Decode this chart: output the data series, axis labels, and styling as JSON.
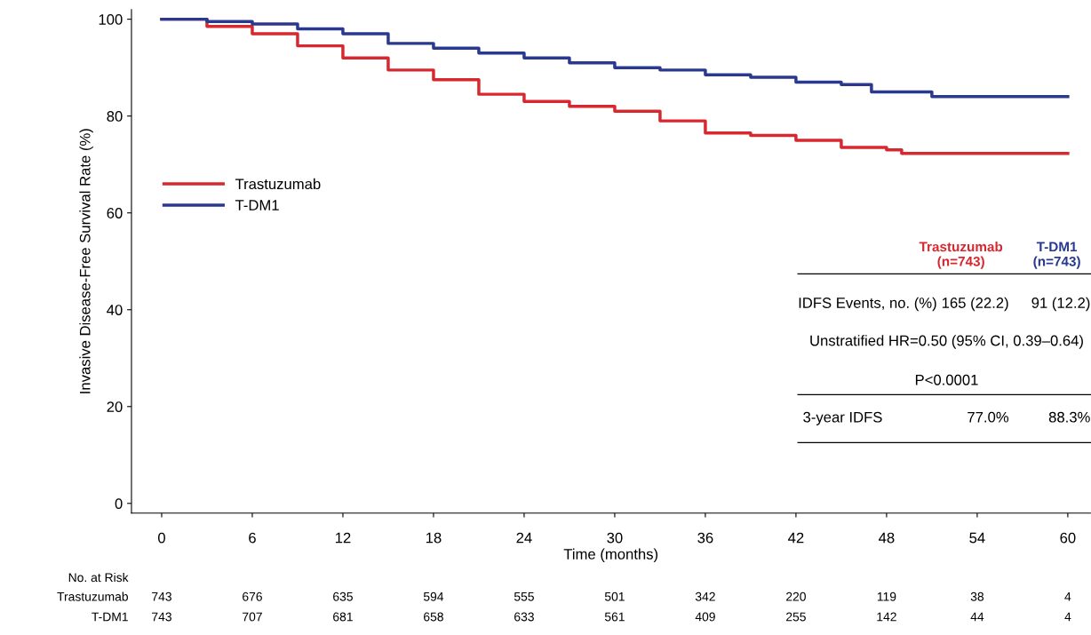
{
  "chart_data": {
    "type": "step",
    "xlabel": "Time (months)",
    "ylabel": "Invasive Disease-Free Survival Rate (%)",
    "xlim": [
      -2,
      61.5
    ],
    "ylim": [
      -2,
      102
    ],
    "xticks": [
      0,
      6,
      12,
      18,
      24,
      30,
      36,
      42,
      48,
      54,
      60
    ],
    "yticks": [
      0,
      20,
      40,
      60,
      80,
      100
    ],
    "grid": false,
    "legend": "center left",
    "series": [
      {
        "name": "Trastuzumab",
        "color": "#d7282f",
        "x": [
          0,
          3,
          6,
          9,
          12,
          15,
          18,
          21,
          24,
          27,
          30,
          33,
          36,
          39,
          42,
          45,
          48,
          49,
          60
        ],
        "values": [
          100,
          98.5,
          97,
          94.5,
          92,
          89.5,
          87.5,
          84.5,
          83,
          82,
          81,
          79,
          76.5,
          76,
          75,
          73.5,
          73,
          72.3,
          72.3
        ]
      },
      {
        "name": "T-DM1",
        "color": "#2a3990",
        "x": [
          0,
          3,
          6,
          9,
          12,
          15,
          18,
          21,
          24,
          27,
          30,
          33,
          36,
          39,
          42,
          45,
          47,
          51,
          60
        ],
        "values": [
          100,
          99.5,
          99,
          98,
          97,
          95,
          94,
          93,
          92,
          91,
          90,
          89.5,
          88.5,
          88,
          87,
          86.5,
          85,
          84,
          84
        ]
      }
    ],
    "annotations": [
      "Trastuzumab\n(n=743)",
      "T-DM1\n(n=743)",
      "IDFS Events, no. (%)",
      "165 (22.2)",
      "91 (12.2)",
      "Unstratified HR=0.50 (95% CI, 0.39–0.64)",
      "P<0.0001",
      "3-year IDFS",
      "77.0%",
      "88.3%",
      "No. at Risk",
      "Trastuzumab 743 676 635 594 555 501 342 220 119 38 4",
      "T-DM1 743 707 681 658 633 561 409 255 142 44 4"
    ]
  }
}
